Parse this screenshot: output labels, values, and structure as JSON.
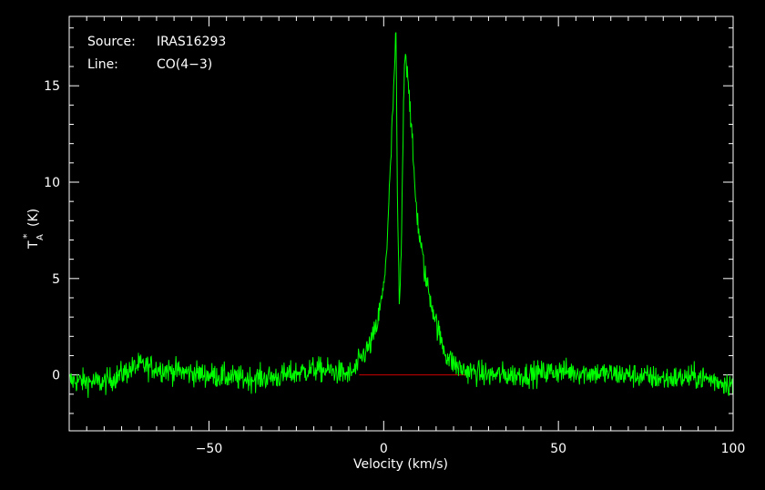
{
  "chart_data": {
    "type": "line",
    "annotations": [
      {
        "key": "Source:",
        "value": "IRAS16293"
      },
      {
        "key": "Line:",
        "value": "CO(4−3)"
      }
    ],
    "xlabel": "Velocity (km/s)",
    "ylabel": "T",
    "ylabel_sub": "A",
    "ylabel_sup": "*",
    "ylabel_unit": "(K)",
    "xlim": [
      -90,
      100
    ],
    "ylim": [
      -2.9,
      18.6
    ],
    "x_ticks": [
      {
        "value": -50,
        "label": "−50"
      },
      {
        "value": 0,
        "label": "0"
      },
      {
        "value": 50,
        "label": "50"
      },
      {
        "value": 100,
        "label": "100"
      }
    ],
    "y_ticks": [
      {
        "value": 0,
        "label": "0"
      },
      {
        "value": 5,
        "label": "5"
      },
      {
        "value": 10,
        "label": "10"
      },
      {
        "value": 15,
        "label": "15"
      }
    ],
    "grid": false,
    "series": [
      {
        "color": "#00ff00",
        "x": [
          -90,
          -80,
          -70,
          -60,
          -50,
          -40,
          -30,
          -20,
          -15,
          -10,
          -8,
          -6,
          -4,
          -2,
          0,
          1,
          2,
          3,
          3.5,
          4,
          4.5,
          5,
          5.5,
          6,
          7,
          8,
          9,
          10,
          12,
          14,
          16,
          18,
          20,
          22,
          24,
          30,
          40,
          50,
          60,
          70,
          80,
          90,
          100
        ],
        "values": [
          -0.3,
          -0.4,
          0.5,
          0.2,
          0.0,
          -0.2,
          -0.1,
          0.3,
          0.2,
          0.0,
          0.3,
          1.0,
          1.5,
          2.5,
          4.5,
          7.0,
          11.0,
          15.5,
          17.7,
          8.0,
          3.5,
          6.0,
          12.0,
          17.0,
          15.5,
          12.5,
          9.5,
          7.5,
          5.0,
          3.5,
          2.0,
          1.0,
          0.6,
          0.3,
          0.2,
          0.0,
          0.0,
          0.2,
          0.1,
          0.0,
          -0.2,
          -0.1,
          -0.5
        ]
      }
    ],
    "baseline": {
      "color": "#cc0000",
      "x_range": [
        -7,
        24
      ],
      "y": 0
    }
  }
}
